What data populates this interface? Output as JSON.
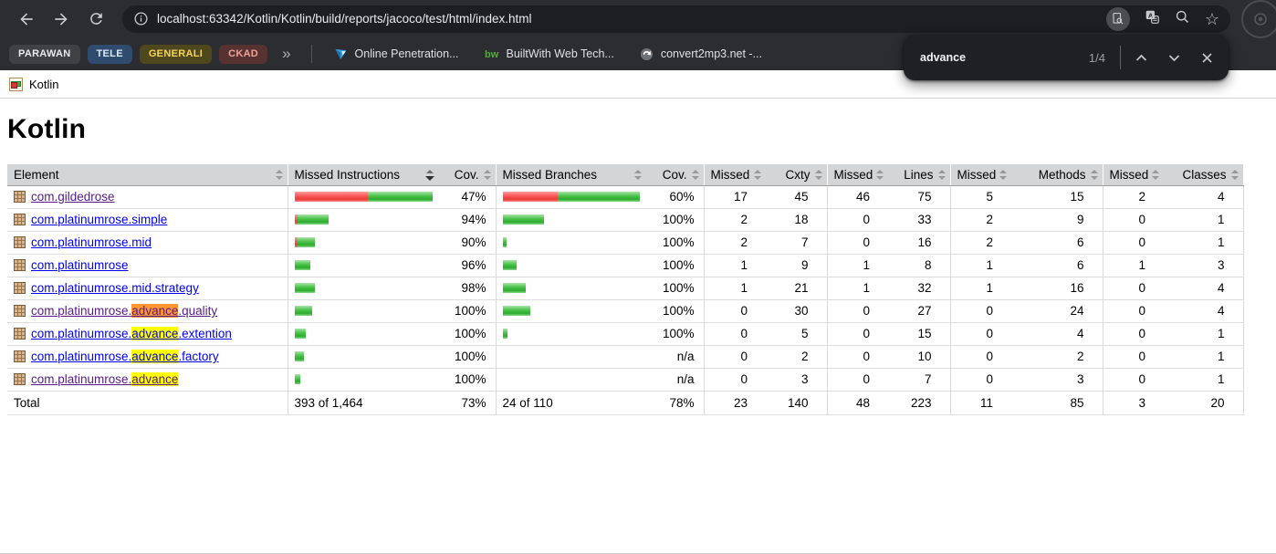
{
  "browser": {
    "toolbar": {
      "url": "localhost:63342/Kotlin/Kotlin/build/reports/jacoco/test/html/index.html"
    },
    "bookmarks_bar": {
      "tab_groups": [
        {
          "label": "PARAWAN",
          "bg": "#404144",
          "fg": "#e8eaed"
        },
        {
          "label": "TELE",
          "bg": "#2f4b6e",
          "fg": "#dce9f9"
        },
        {
          "label": "GENERALI",
          "bg": "#4f481d",
          "fg": "#f5d65a"
        },
        {
          "label": "CKAD",
          "bg": "#563231",
          "fg": "#f2a29b"
        }
      ],
      "overflow_label": "»",
      "items": [
        {
          "label": "Online Penetration..."
        },
        {
          "label": "BuiltWith Web Tech..."
        },
        {
          "label": "convert2mp3.net -..."
        }
      ]
    },
    "find_bar": {
      "query": "advance",
      "counter": "1/4"
    }
  },
  "page": {
    "breadcrumb": "Kotlin",
    "title": "Kotlin",
    "table": {
      "headers": [
        "Element",
        "Missed Instructions",
        "Cov.",
        "Missed Branches",
        "Cov.",
        "Missed",
        "Cxty",
        "Missed",
        "Lines",
        "Missed",
        "Methods",
        "Missed",
        "Classes"
      ],
      "sorted_index": 1,
      "sort_direction": "desc",
      "rows": [
        {
          "prefix": "com.gildedrose",
          "match": "",
          "suffix": "",
          "match_type": "",
          "visited": true,
          "instr_bar": {
            "red": 80,
            "green": 71
          },
          "instr_cov": "47%",
          "branch_bar": {
            "red": 60,
            "green": 90
          },
          "branch_cov": "60%",
          "metrics": [
            17,
            45,
            46,
            75,
            5,
            15,
            2,
            4
          ]
        },
        {
          "prefix": "com.platinumrose.simple",
          "match": "",
          "suffix": "",
          "match_type": "",
          "visited": false,
          "instr_bar": {
            "red": 3,
            "green": 34
          },
          "instr_cov": "94%",
          "branch_bar": {
            "red": 0,
            "green": 45
          },
          "branch_cov": "100%",
          "metrics": [
            2,
            18,
            0,
            33,
            2,
            9,
            0,
            1
          ]
        },
        {
          "prefix": "com.platinumrose.mid",
          "match": "",
          "suffix": "",
          "match_type": "",
          "visited": false,
          "instr_bar": {
            "red": 3,
            "green": 19
          },
          "instr_cov": "90%",
          "branch_bar": {
            "red": 0,
            "green": 4
          },
          "branch_cov": "100%",
          "metrics": [
            2,
            7,
            0,
            16,
            2,
            6,
            0,
            1
          ]
        },
        {
          "prefix": "com.platinumrose",
          "match": "",
          "suffix": "",
          "match_type": "",
          "visited": false,
          "instr_bar": {
            "red": 0,
            "green": 17
          },
          "instr_cov": "96%",
          "branch_bar": {
            "red": 0,
            "green": 15
          },
          "branch_cov": "100%",
          "metrics": [
            1,
            9,
            1,
            8,
            1,
            6,
            1,
            3
          ]
        },
        {
          "prefix": "com.platinumrose.mid.strategy",
          "match": "",
          "suffix": "",
          "match_type": "",
          "visited": false,
          "instr_bar": {
            "red": 0,
            "green": 22
          },
          "instr_cov": "98%",
          "branch_bar": {
            "red": 0,
            "green": 25
          },
          "branch_cov": "100%",
          "metrics": [
            1,
            21,
            1,
            32,
            1,
            16,
            0,
            4
          ]
        },
        {
          "prefix": "com.platinumrose.",
          "match": "advance",
          "suffix": ".quality",
          "match_type": "active",
          "visited": true,
          "instr_bar": {
            "red": 0,
            "green": 19
          },
          "instr_cov": "100%",
          "branch_bar": {
            "red": 0,
            "green": 30
          },
          "branch_cov": "100%",
          "metrics": [
            0,
            30,
            0,
            27,
            0,
            24,
            0,
            4
          ]
        },
        {
          "prefix": "com.platinumrose.",
          "match": "advance",
          "suffix": ".extention",
          "match_type": "normal",
          "visited": false,
          "instr_bar": {
            "red": 0,
            "green": 12
          },
          "instr_cov": "100%",
          "branch_bar": {
            "red": 0,
            "green": 5
          },
          "branch_cov": "100%",
          "metrics": [
            0,
            5,
            0,
            15,
            0,
            4,
            0,
            1
          ]
        },
        {
          "prefix": "com.platinumrose.",
          "match": "advance",
          "suffix": ".factory",
          "match_type": "normal",
          "visited": false,
          "instr_bar": {
            "red": 0,
            "green": 10
          },
          "instr_cov": "100%",
          "branch_bar": {
            "red": 0,
            "green": 0
          },
          "branch_cov": "n/a",
          "metrics": [
            0,
            2,
            0,
            10,
            0,
            2,
            0,
            1
          ]
        },
        {
          "prefix": "com.platinumrose.",
          "match": "advance",
          "suffix": "",
          "match_type": "normal",
          "visited": true,
          "instr_bar": {
            "red": 0,
            "green": 6
          },
          "instr_cov": "100%",
          "branch_bar": {
            "red": 0,
            "green": 0
          },
          "branch_cov": "n/a",
          "metrics": [
            0,
            3,
            0,
            7,
            0,
            3,
            0,
            1
          ]
        }
      ],
      "total": {
        "label": "Total",
        "instr": "393 of 1,464",
        "instr_cov": "73%",
        "branch": "24 of 110",
        "branch_cov": "78%",
        "metrics": [
          23,
          140,
          48,
          223,
          11,
          85,
          3,
          20
        ]
      }
    }
  },
  "colors": {
    "link": "#0000ee",
    "link_visited": "#551a8b",
    "highlight_active": "#ff9632",
    "highlight_match": "#ffff00",
    "bar_red": "#ee3939",
    "bar_green": "#2cab2c"
  }
}
